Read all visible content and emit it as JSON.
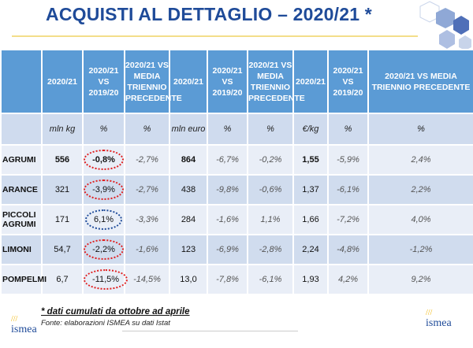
{
  "title": "ACQUISTI AL DETTAGLIO – 2020/21 *",
  "table": {
    "headers": [
      "",
      "2020/21",
      "2020/21 VS 2019/20",
      "2020/21 VS MEDIA TRIENNIO PRECEDENTE",
      "2020/21",
      "2020/21 VS 2019/20",
      "2020/21 VS MEDIA TRIENNIO PRECEDENTE",
      "2020/21",
      "2020/21 VS 2019/20",
      "2020/21 VS MEDIA TRIENNIO PRECEDENTE"
    ],
    "units": [
      "",
      "mln kg",
      "%",
      "%",
      "mln euro",
      "%",
      "%",
      "€/kg",
      "%",
      "%"
    ],
    "rows": [
      {
        "label": "AGRUMI",
        "values": [
          "556",
          "-0,8%",
          "-2,7%",
          "864",
          "-6,7%",
          "-0,2%",
          "1,55",
          "-5,9%",
          "2,4%"
        ],
        "circle": "red"
      },
      {
        "label": "ARANCE",
        "values": [
          "321",
          "-3,9%",
          "-2,7%",
          "438",
          "-9,8%",
          "-0,6%",
          "1,37",
          "-6,1%",
          "2,2%"
        ],
        "circle": "red"
      },
      {
        "label": "PICCOLI AGRUMI",
        "values": [
          "171",
          "6,1%",
          "-3,3%",
          "284",
          "-1,6%",
          "1,1%",
          "1,66",
          "-7,2%",
          "4,0%"
        ],
        "circle": "blue"
      },
      {
        "label": "LIMONI",
        "values": [
          "54,7",
          "-2,2%",
          "-1,6%",
          "123",
          "-6,9%",
          "-2,8%",
          "2,24",
          "-4,8%",
          "-1,2%"
        ],
        "circle": "red"
      },
      {
        "label": "POMPELMI",
        "values": [
          "6,7",
          "-11,5%",
          "-14,5%",
          "13,0",
          "-7,8%",
          "-6,1%",
          "1,93",
          "4,2%",
          "9,2%"
        ],
        "circle": "red"
      }
    ]
  },
  "footnote": "* dati cumulati da ottobre ad aprile",
  "source": "Fonte: elaborazioni ISMEA su dati Istat",
  "logo": "ismea",
  "colors": {
    "title": "#1f4b99",
    "header": "#5b9bd5",
    "circle_red": "#e02020",
    "circle_blue": "#1f4b99"
  }
}
